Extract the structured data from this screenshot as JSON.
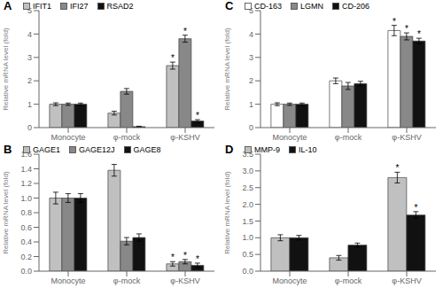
{
  "chart_data": [
    {
      "type": "bar",
      "title": "A",
      "ylabel": "Relative mRNA level (fold)",
      "categories": [
        "Monocyte",
        "φ-mock",
        "φ-KSHV"
      ],
      "series": [
        {
          "name": "IFIT1",
          "color": "#c0c0c0",
          "values": [
            1.0,
            0.62,
            2.65
          ],
          "errors": [
            0.06,
            0.08,
            0.15
          ]
        },
        {
          "name": "IFI27",
          "color": "#888888",
          "values": [
            1.0,
            1.55,
            3.8
          ],
          "errors": [
            0.05,
            0.12,
            0.15
          ]
        },
        {
          "name": "RSAD2",
          "color": "#111111",
          "values": [
            1.0,
            0.04,
            0.28
          ],
          "errors": [
            0.05,
            0.02,
            0.06
          ]
        }
      ],
      "annotations": [
        {
          "category": "φ-KSHV",
          "series": "IFIT1",
          "text": "*"
        },
        {
          "category": "φ-KSHV",
          "series": "IFI27",
          "text": "*"
        },
        {
          "category": "φ-KSHV",
          "series": "RSAD2",
          "text": "*"
        }
      ],
      "ylim": [
        0,
        5
      ],
      "yticks": [
        0,
        1,
        2,
        3,
        4,
        5
      ],
      "legend": "upper left",
      "grid": false
    },
    {
      "type": "bar",
      "title": "B",
      "ylabel": "Relative mRNA level (fold)",
      "categories": [
        "Monocyte",
        "φ-mock",
        "φ-KSHV"
      ],
      "series": [
        {
          "name": "GAGE1",
          "color": "#c0c0c0",
          "values": [
            1.0,
            1.38,
            0.1
          ],
          "errors": [
            0.08,
            0.08,
            0.03
          ]
        },
        {
          "name": "GAGE12J",
          "color": "#888888",
          "values": [
            1.0,
            0.41,
            0.13
          ],
          "errors": [
            0.06,
            0.05,
            0.03
          ]
        },
        {
          "name": "GAGE8",
          "color": "#111111",
          "values": [
            1.0,
            0.46,
            0.08
          ],
          "errors": [
            0.06,
            0.05,
            0.03
          ]
        }
      ],
      "annotations": [
        {
          "category": "φ-KSHV",
          "series": "GAGE1",
          "text": "*"
        },
        {
          "category": "φ-KSHV",
          "series": "GAGE12J",
          "text": "*"
        },
        {
          "category": "φ-KSHV",
          "series": "GAGE8",
          "text": "*"
        }
      ],
      "ylim": [
        0,
        1.6
      ],
      "yticks": [
        {
          "value": 0,
          "label": "0.0"
        },
        0.2,
        0.4,
        0.6,
        0.8,
        {
          "value": 1,
          "label": "1.0"
        },
        1.2,
        1.4,
        1.6
      ],
      "legend": "upper left",
      "grid": false
    },
    {
      "type": "bar",
      "title": "C",
      "ylabel": "Relative mRNA level (fold)",
      "categories": [
        "Monocyte",
        "φ-mock",
        "φ-KSHV"
      ],
      "series": [
        {
          "name": "CD-163",
          "color": "#ffffff",
          "values": [
            1.0,
            2.0,
            4.15
          ],
          "errors": [
            0.06,
            0.12,
            0.22
          ]
        },
        {
          "name": "LGMN",
          "color": "#888888",
          "values": [
            1.0,
            1.78,
            3.9
          ],
          "errors": [
            0.05,
            0.15,
            0.15
          ]
        },
        {
          "name": "CD-206",
          "color": "#111111",
          "values": [
            1.0,
            1.88,
            3.7
          ],
          "errors": [
            0.05,
            0.1,
            0.12
          ]
        }
      ],
      "annotations": [
        {
          "category": "φ-KSHV",
          "series": "CD-163",
          "text": "*"
        },
        {
          "category": "φ-KSHV",
          "series": "LGMN",
          "text": "*"
        },
        {
          "category": "φ-KSHV",
          "series": "CD-206",
          "text": "*"
        }
      ],
      "ylim": [
        0,
        5
      ],
      "yticks": [
        0,
        1,
        2,
        3,
        4,
        5
      ],
      "legend": "upper left",
      "grid": false
    },
    {
      "type": "bar",
      "title": "D",
      "ylabel": "Relative mRNA level (fold)",
      "categories": [
        "Monocyte",
        "φ-mock",
        "φ-KSHV"
      ],
      "series": [
        {
          "name": "MMP-9",
          "color": "#c0c0c0",
          "values": [
            1.0,
            0.4,
            2.8
          ],
          "errors": [
            0.09,
            0.07,
            0.16
          ]
        },
        {
          "name": "IL-10",
          "color": "#111111",
          "values": [
            1.0,
            0.78,
            1.68
          ],
          "errors": [
            0.07,
            0.06,
            0.1
          ]
        }
      ],
      "annotations": [
        {
          "category": "φ-KSHV",
          "series": "MMP-9",
          "text": "*"
        },
        {
          "category": "φ-KSHV",
          "series": "IL-10",
          "text": "*"
        }
      ],
      "ylim": [
        0,
        3.5
      ],
      "yticks": [
        {
          "value": 0,
          "label": "0.0"
        },
        0.5,
        {
          "value": 1,
          "label": "1.0"
        },
        1.5,
        {
          "value": 2,
          "label": "2.0"
        },
        2.5,
        {
          "value": 3,
          "label": "3.0"
        },
        3.5
      ],
      "legend": "upper left",
      "grid": false
    }
  ]
}
